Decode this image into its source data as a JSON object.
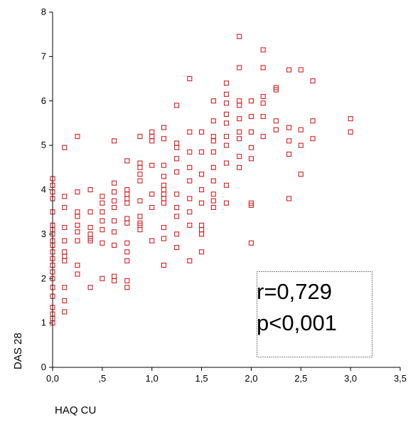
{
  "chart_data": {
    "type": "scatter",
    "xlabel": "HAQ CU",
    "ylabel": "DAS 28",
    "xlim": [
      0,
      3.5
    ],
    "ylim": [
      0,
      8
    ],
    "x_ticks": [
      0,
      0.5,
      1.0,
      1.5,
      2.0,
      2.5,
      3.0,
      3.5
    ],
    "x_tick_labels": [
      "0,0",
      ",5",
      "1,0",
      "1,5",
      "2,0",
      "2,5",
      "3,0",
      "3,5"
    ],
    "y_ticks": [
      0,
      1,
      2,
      3,
      4,
      5,
      6,
      7,
      8
    ],
    "y_tick_labels": [
      "0",
      "1",
      "2",
      "3",
      "4",
      "5",
      "6",
      "7",
      "8"
    ],
    "grid": false,
    "marker": "hollow-square",
    "marker_color": "#d42020",
    "annotation": {
      "lines": [
        "r=0,729",
        "p<0,001"
      ],
      "location": "bottom-right",
      "border": "dotted"
    },
    "series": [
      {
        "points": [
          [
            0.0,
            1.0
          ],
          [
            0.0,
            1.1
          ],
          [
            0.0,
            1.2
          ],
          [
            0.0,
            1.35
          ],
          [
            0.0,
            1.6
          ],
          [
            0.0,
            1.8
          ],
          [
            0.0,
            2.0
          ],
          [
            0.0,
            2.15
          ],
          [
            0.0,
            2.3
          ],
          [
            0.0,
            2.45
          ],
          [
            0.0,
            2.6
          ],
          [
            0.0,
            2.75
          ],
          [
            0.0,
            2.85
          ],
          [
            0.0,
            3.0
          ],
          [
            0.0,
            3.1
          ],
          [
            0.0,
            3.2
          ],
          [
            0.0,
            3.5
          ],
          [
            0.0,
            3.8
          ],
          [
            0.0,
            3.95
          ],
          [
            0.0,
            4.1
          ],
          [
            0.0,
            4.25
          ],
          [
            0.12,
            1.25
          ],
          [
            0.12,
            1.5
          ],
          [
            0.12,
            1.8
          ],
          [
            0.12,
            2.4
          ],
          [
            0.12,
            2.5
          ],
          [
            0.12,
            2.6
          ],
          [
            0.12,
            2.85
          ],
          [
            0.12,
            3.15
          ],
          [
            0.12,
            3.6
          ],
          [
            0.12,
            3.85
          ],
          [
            0.12,
            4.95
          ],
          [
            0.25,
            2.1
          ],
          [
            0.25,
            2.3
          ],
          [
            0.25,
            2.85
          ],
          [
            0.25,
            3.05
          ],
          [
            0.25,
            3.2
          ],
          [
            0.25,
            3.4
          ],
          [
            0.25,
            3.5
          ],
          [
            0.25,
            3.95
          ],
          [
            0.25,
            5.2
          ],
          [
            0.38,
            1.8
          ],
          [
            0.38,
            2.85
          ],
          [
            0.38,
            2.9
          ],
          [
            0.38,
            3.0
          ],
          [
            0.38,
            3.15
          ],
          [
            0.38,
            3.5
          ],
          [
            0.38,
            4.0
          ],
          [
            0.5,
            2.0
          ],
          [
            0.5,
            2.8
          ],
          [
            0.5,
            3.1
          ],
          [
            0.5,
            3.3
          ],
          [
            0.5,
            3.5
          ],
          [
            0.5,
            3.7
          ],
          [
            0.5,
            3.85
          ],
          [
            0.62,
            1.95
          ],
          [
            0.62,
            2.05
          ],
          [
            0.62,
            2.75
          ],
          [
            0.62,
            3.05
          ],
          [
            0.62,
            3.3
          ],
          [
            0.62,
            3.6
          ],
          [
            0.62,
            3.75
          ],
          [
            0.62,
            3.95
          ],
          [
            0.62,
            4.15
          ],
          [
            0.62,
            5.1
          ],
          [
            0.75,
            1.8
          ],
          [
            0.75,
            1.95
          ],
          [
            0.75,
            2.4
          ],
          [
            0.75,
            2.6
          ],
          [
            0.75,
            2.8
          ],
          [
            0.75,
            3.25
          ],
          [
            0.75,
            3.35
          ],
          [
            0.75,
            3.7
          ],
          [
            0.75,
            3.8
          ],
          [
            0.75,
            3.9
          ],
          [
            0.75,
            4.0
          ],
          [
            0.75,
            4.65
          ],
          [
            0.88,
            3.1
          ],
          [
            0.88,
            3.2
          ],
          [
            0.88,
            3.25
          ],
          [
            0.88,
            3.4
          ],
          [
            0.88,
            3.75
          ],
          [
            0.88,
            4.2
          ],
          [
            0.88,
            4.35
          ],
          [
            0.88,
            4.5
          ],
          [
            0.88,
            4.6
          ],
          [
            0.88,
            5.2
          ],
          [
            1.0,
            2.85
          ],
          [
            1.0,
            3.6
          ],
          [
            1.0,
            3.9
          ],
          [
            1.0,
            4.55
          ],
          [
            1.0,
            5.1
          ],
          [
            1.0,
            5.2
          ],
          [
            1.0,
            5.3
          ],
          [
            1.12,
            2.3
          ],
          [
            1.12,
            2.9
          ],
          [
            1.12,
            3.15
          ],
          [
            1.12,
            3.7
          ],
          [
            1.12,
            3.8
          ],
          [
            1.12,
            3.9
          ],
          [
            1.12,
            4.0
          ],
          [
            1.12,
            4.1
          ],
          [
            1.12,
            4.3
          ],
          [
            1.12,
            4.55
          ],
          [
            1.12,
            5.15
          ],
          [
            1.12,
            5.4
          ],
          [
            1.25,
            2.7
          ],
          [
            1.25,
            3.0
          ],
          [
            1.25,
            3.4
          ],
          [
            1.25,
            3.6
          ],
          [
            1.25,
            3.9
          ],
          [
            1.25,
            4.4
          ],
          [
            1.25,
            4.7
          ],
          [
            1.25,
            4.95
          ],
          [
            1.25,
            5.05
          ],
          [
            1.25,
            5.9
          ],
          [
            1.38,
            2.4
          ],
          [
            1.38,
            3.2
          ],
          [
            1.38,
            3.5
          ],
          [
            1.38,
            3.8
          ],
          [
            1.38,
            4.2
          ],
          [
            1.38,
            4.5
          ],
          [
            1.38,
            4.85
          ],
          [
            1.38,
            5.3
          ],
          [
            1.38,
            6.5
          ],
          [
            1.5,
            2.6
          ],
          [
            1.5,
            3.0
          ],
          [
            1.5,
            3.1
          ],
          [
            1.5,
            3.2
          ],
          [
            1.5,
            3.7
          ],
          [
            1.5,
            4.0
          ],
          [
            1.5,
            4.35
          ],
          [
            1.5,
            4.85
          ],
          [
            1.5,
            5.3
          ],
          [
            1.62,
            3.6
          ],
          [
            1.62,
            3.75
          ],
          [
            1.62,
            3.9
          ],
          [
            1.62,
            4.2
          ],
          [
            1.62,
            4.5
          ],
          [
            1.62,
            4.85
          ],
          [
            1.62,
            5.1
          ],
          [
            1.62,
            5.2
          ],
          [
            1.62,
            5.55
          ],
          [
            1.62,
            6.0
          ],
          [
            1.75,
            3.7
          ],
          [
            1.75,
            4.1
          ],
          [
            1.75,
            4.6
          ],
          [
            1.75,
            5.0
          ],
          [
            1.75,
            5.2
          ],
          [
            1.75,
            5.5
          ],
          [
            1.75,
            5.7
          ],
          [
            1.75,
            5.95
          ],
          [
            1.75,
            6.15
          ],
          [
            1.75,
            6.4
          ],
          [
            1.88,
            4.5
          ],
          [
            1.88,
            4.75
          ],
          [
            1.88,
            5.15
          ],
          [
            1.88,
            5.3
          ],
          [
            1.88,
            5.6
          ],
          [
            1.88,
            5.9
          ],
          [
            1.88,
            6.0
          ],
          [
            1.88,
            6.75
          ],
          [
            1.88,
            7.45
          ],
          [
            2.0,
            2.8
          ],
          [
            2.0,
            3.65
          ],
          [
            2.0,
            3.7
          ],
          [
            2.0,
            4.7
          ],
          [
            2.0,
            4.95
          ],
          [
            2.0,
            5.3
          ],
          [
            2.0,
            5.65
          ],
          [
            2.0,
            6.0
          ],
          [
            2.12,
            5.2
          ],
          [
            2.12,
            5.65
          ],
          [
            2.12,
            5.95
          ],
          [
            2.12,
            6.1
          ],
          [
            2.12,
            6.75
          ],
          [
            2.12,
            7.15
          ],
          [
            2.25,
            5.35
          ],
          [
            2.25,
            5.55
          ],
          [
            2.25,
            6.25
          ],
          [
            2.25,
            6.3
          ],
          [
            2.38,
            3.8
          ],
          [
            2.38,
            4.8
          ],
          [
            2.38,
            5.1
          ],
          [
            2.38,
            5.4
          ],
          [
            2.38,
            6.7
          ],
          [
            2.5,
            4.35
          ],
          [
            2.5,
            5.0
          ],
          [
            2.5,
            5.35
          ],
          [
            2.5,
            6.7
          ],
          [
            2.62,
            5.15
          ],
          [
            2.62,
            5.55
          ],
          [
            2.62,
            6.45
          ],
          [
            3.0,
            5.3
          ],
          [
            3.0,
            5.6
          ]
        ]
      }
    ]
  }
}
